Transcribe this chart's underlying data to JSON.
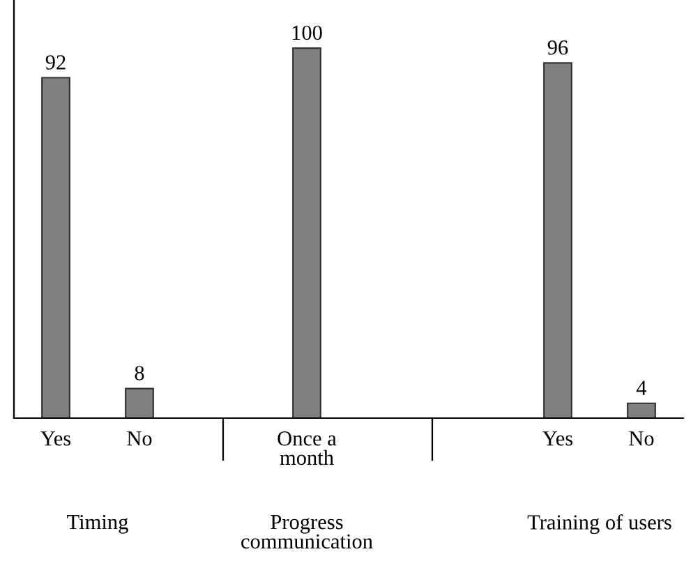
{
  "chart_data": {
    "type": "bar",
    "categories": [
      "Yes",
      "No",
      null,
      "Once a month",
      null,
      null,
      "Yes",
      "No"
    ],
    "values": [
      92,
      8,
      null,
      100,
      null,
      null,
      96,
      4
    ],
    "color": "#808080",
    "data_labels": true,
    "annotations": [
      "Timing",
      "Progress communication",
      "Training of users"
    ]
  }
}
